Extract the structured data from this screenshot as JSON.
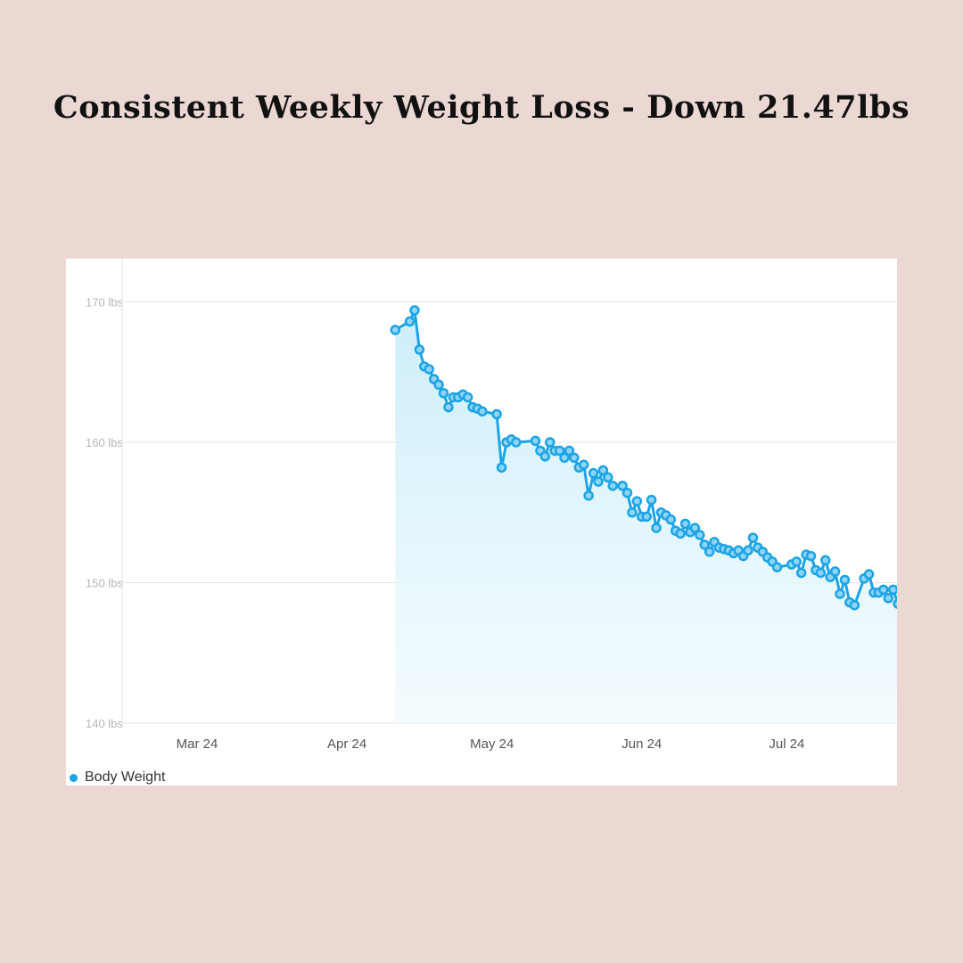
{
  "title": "Consistent Weekly Weight Loss - Down 21.47lbs",
  "chart_data": {
    "type": "area",
    "title": "Consistent Weekly Weight Loss - Down 21.47lbs",
    "xlabel": "",
    "ylabel": "",
    "year": 2024,
    "xlim": [
      "2024-02-15",
      "2024-07-24"
    ],
    "ylim": [
      140,
      173
    ],
    "grid": true,
    "legend_placement": "bottom-left",
    "series": [
      {
        "name": "Body Weight",
        "color": "#1ba4e6",
        "points": [
          [
            "2024-04-11",
            168.0
          ],
          [
            "2024-04-14",
            168.6
          ],
          [
            "2024-04-15",
            169.4
          ],
          [
            "2024-04-16",
            166.6
          ],
          [
            "2024-04-17",
            165.4
          ],
          [
            "2024-04-18",
            165.2
          ],
          [
            "2024-04-19",
            164.5
          ],
          [
            "2024-04-20",
            164.1
          ],
          [
            "2024-04-21",
            163.5
          ],
          [
            "2024-04-22",
            162.5
          ],
          [
            "2024-04-23",
            163.2
          ],
          [
            "2024-04-24",
            163.2
          ],
          [
            "2024-04-25",
            163.4
          ],
          [
            "2024-04-26",
            163.2
          ],
          [
            "2024-04-27",
            162.5
          ],
          [
            "2024-04-28",
            162.4
          ],
          [
            "2024-04-29",
            162.2
          ],
          [
            "2024-05-02",
            162.0
          ],
          [
            "2024-05-03",
            158.2
          ],
          [
            "2024-05-04",
            160.0
          ],
          [
            "2024-05-05",
            160.2
          ],
          [
            "2024-05-06",
            160.0
          ],
          [
            "2024-05-10",
            160.1
          ],
          [
            "2024-05-11",
            159.4
          ],
          [
            "2024-05-12",
            159.0
          ],
          [
            "2024-05-13",
            160.0
          ],
          [
            "2024-05-14",
            159.4
          ],
          [
            "2024-05-15",
            159.4
          ],
          [
            "2024-05-16",
            158.9
          ],
          [
            "2024-05-17",
            159.4
          ],
          [
            "2024-05-18",
            158.9
          ],
          [
            "2024-05-19",
            158.2
          ],
          [
            "2024-05-20",
            158.4
          ],
          [
            "2024-05-21",
            156.2
          ],
          [
            "2024-05-22",
            157.8
          ],
          [
            "2024-05-23",
            157.2
          ],
          [
            "2024-05-24",
            158.0
          ],
          [
            "2024-05-25",
            157.5
          ],
          [
            "2024-05-26",
            156.9
          ],
          [
            "2024-05-28",
            156.9
          ],
          [
            "2024-05-29",
            156.4
          ],
          [
            "2024-05-30",
            155.0
          ],
          [
            "2024-05-31",
            155.8
          ],
          [
            "2024-06-01",
            154.7
          ],
          [
            "2024-06-02",
            154.7
          ],
          [
            "2024-06-03",
            155.9
          ],
          [
            "2024-06-04",
            153.9
          ],
          [
            "2024-06-05",
            155.0
          ],
          [
            "2024-06-06",
            154.8
          ],
          [
            "2024-06-07",
            154.5
          ],
          [
            "2024-06-08",
            153.7
          ],
          [
            "2024-06-09",
            153.5
          ],
          [
            "2024-06-10",
            154.2
          ],
          [
            "2024-06-11",
            153.6
          ],
          [
            "2024-06-12",
            153.9
          ],
          [
            "2024-06-13",
            153.4
          ],
          [
            "2024-06-14",
            152.7
          ],
          [
            "2024-06-15",
            152.2
          ],
          [
            "2024-06-16",
            152.9
          ],
          [
            "2024-06-17",
            152.5
          ],
          [
            "2024-06-18",
            152.4
          ],
          [
            "2024-06-19",
            152.3
          ],
          [
            "2024-06-20",
            152.1
          ],
          [
            "2024-06-21",
            152.3
          ],
          [
            "2024-06-22",
            151.9
          ],
          [
            "2024-06-23",
            152.3
          ],
          [
            "2024-06-24",
            153.2
          ],
          [
            "2024-06-25",
            152.5
          ],
          [
            "2024-06-26",
            152.2
          ],
          [
            "2024-06-27",
            151.8
          ],
          [
            "2024-06-28",
            151.5
          ],
          [
            "2024-06-29",
            151.1
          ],
          [
            "2024-07-02",
            151.3
          ],
          [
            "2024-07-03",
            151.5
          ],
          [
            "2024-07-04",
            150.7
          ],
          [
            "2024-07-05",
            152.0
          ],
          [
            "2024-07-06",
            151.9
          ],
          [
            "2024-07-07",
            150.9
          ],
          [
            "2024-07-08",
            150.7
          ],
          [
            "2024-07-09",
            151.6
          ],
          [
            "2024-07-10",
            150.4
          ],
          [
            "2024-07-11",
            150.8
          ],
          [
            "2024-07-12",
            149.2
          ],
          [
            "2024-07-13",
            150.2
          ],
          [
            "2024-07-14",
            148.6
          ],
          [
            "2024-07-15",
            148.4
          ],
          [
            "2024-07-17",
            150.3
          ],
          [
            "2024-07-18",
            150.6
          ],
          [
            "2024-07-19",
            149.3
          ],
          [
            "2024-07-20",
            149.3
          ],
          [
            "2024-07-21",
            149.5
          ],
          [
            "2024-07-22",
            148.9
          ],
          [
            "2024-07-23",
            149.5
          ],
          [
            "2024-07-24",
            148.5
          ]
        ]
      }
    ],
    "y_ticks": [
      {
        "value": 140,
        "label": "140 lbs"
      },
      {
        "value": 150,
        "label": "150 lbs"
      },
      {
        "value": 160,
        "label": "160 lbs"
      },
      {
        "value": 170,
        "label": "170 lbs"
      }
    ],
    "x_ticks": [
      {
        "date": "2024-03-01",
        "label": "Mar 24"
      },
      {
        "date": "2024-04-01",
        "label": "Apr 24"
      },
      {
        "date": "2024-05-01",
        "label": "May 24"
      },
      {
        "date": "2024-06-01",
        "label": "Jun 24"
      },
      {
        "date": "2024-07-01",
        "label": "Jul 24"
      }
    ],
    "legend": [
      {
        "label": "Body Weight",
        "color": "#1ba4e6"
      }
    ]
  }
}
